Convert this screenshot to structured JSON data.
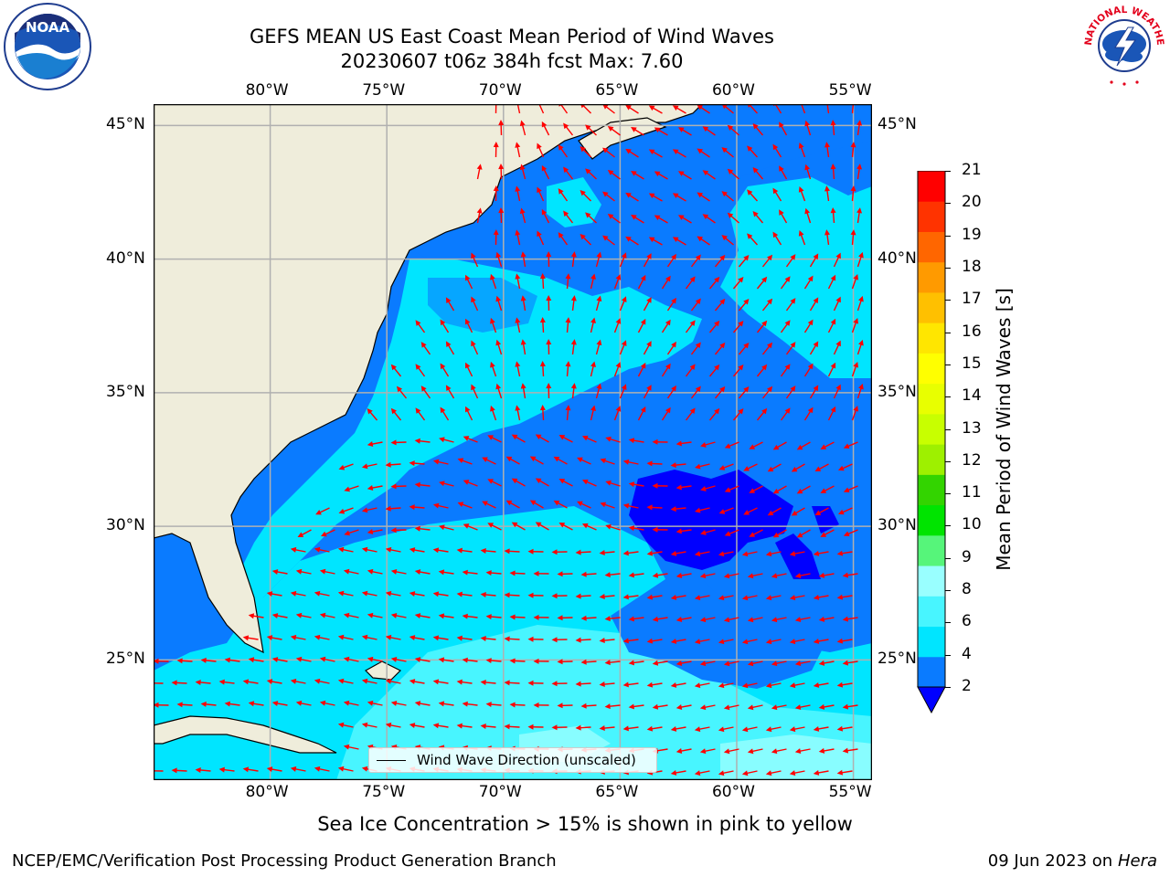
{
  "title": {
    "line1": "GEFS MEAN US East Coast Mean Period of Wind Waves",
    "line2": "20230607 t06z 384h fcst   Max: 7.60"
  },
  "map": {
    "lon_labels": [
      "80°W",
      "75°W",
      "70°W",
      "65°W",
      "60°W",
      "55°W"
    ],
    "lat_labels": [
      "45°N",
      "40°N",
      "35°N",
      "30°N",
      "25°N"
    ],
    "extent": {
      "lon": [
        -85,
        -54.2
      ],
      "lat": [
        20.5,
        45.8
      ]
    },
    "land_color": "#efeddb",
    "grid_color": "#b0b0b0",
    "arrow_color": "#ff0000",
    "legend_label": "Wind Wave Direction (unscaled)"
  },
  "colorbar": {
    "label": "Mean Period of Wind Waves [s]",
    "tick_labels": [
      "2",
      "4",
      "6",
      "8",
      "9",
      "10",
      "11",
      "12",
      "13",
      "14",
      "15",
      "16",
      "17",
      "18",
      "19",
      "20",
      "21"
    ],
    "colors": [
      "#0a7bff",
      "#00e5ff",
      "#48f5ff",
      "#99ffff",
      "#56f57a",
      "#00e400",
      "#33d400",
      "#9ef000",
      "#c8ff00",
      "#e8ff00",
      "#ffff00",
      "#ffe600",
      "#ffc000",
      "#ff9a00",
      "#ff6600",
      "#ff3300",
      "#ff0000"
    ],
    "under_color": "#0000ff"
  },
  "footer": {
    "sea_ice_note": "Sea Ice Concentration > 15% is shown in pink to yellow",
    "branch": "NCEP/EMC/Verification Post Processing Product Generation Branch",
    "date": "09 Jun 2023 on",
    "host": "Hera"
  },
  "logos": {
    "noaa": "NOAA",
    "nws": "NATIONAL WEATHER SERVICE"
  }
}
